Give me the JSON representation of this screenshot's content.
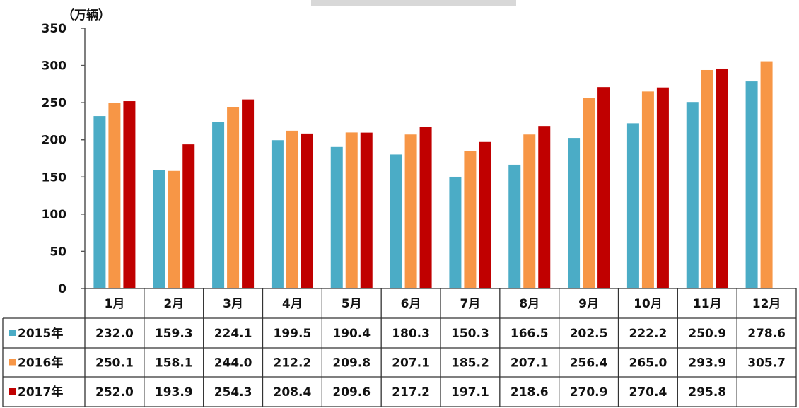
{
  "chart_data": {
    "type": "bar",
    "y_unit": "（万辆）",
    "ylim": [
      0,
      350
    ],
    "yticks": [
      0,
      50,
      100,
      150,
      200,
      250,
      300,
      350
    ],
    "categories": [
      "1月",
      "2月",
      "3月",
      "4月",
      "5月",
      "6月",
      "7月",
      "8月",
      "9月",
      "10月",
      "11月",
      "12月"
    ],
    "series": [
      {
        "name": "2015年",
        "color": "#4bacc6",
        "values": [
          232.0,
          159.3,
          224.1,
          199.5,
          190.4,
          180.3,
          150.3,
          166.5,
          202.5,
          222.2,
          250.9,
          278.6
        ],
        "labels": [
          "232.0",
          "159.3",
          "224.1",
          "199.5",
          "190.4",
          "180.3",
          "150.3",
          "166.5",
          "202.5",
          "222.2",
          "250.9",
          "278.6"
        ]
      },
      {
        "name": "2016年",
        "color": "#f79646",
        "values": [
          250.1,
          158.1,
          244.0,
          212.2,
          209.8,
          207.1,
          185.2,
          207.1,
          256.4,
          265.0,
          293.9,
          305.7
        ],
        "labels": [
          "250.1",
          "158.1",
          "244.0",
          "212.2",
          "209.8",
          "207.1",
          "185.2",
          "207.1",
          "256.4",
          "265.0",
          "293.9",
          "305.7"
        ]
      },
      {
        "name": "2017年",
        "color": "#c00000",
        "values": [
          252.0,
          193.9,
          254.3,
          208.4,
          209.6,
          217.2,
          197.1,
          218.6,
          270.9,
          270.4,
          295.8,
          null
        ],
        "labels": [
          "252.0",
          "193.9",
          "254.3",
          "208.4",
          "209.6",
          "217.2",
          "197.1",
          "218.6",
          "270.9",
          "270.4",
          "295.8",
          ""
        ]
      }
    ]
  }
}
